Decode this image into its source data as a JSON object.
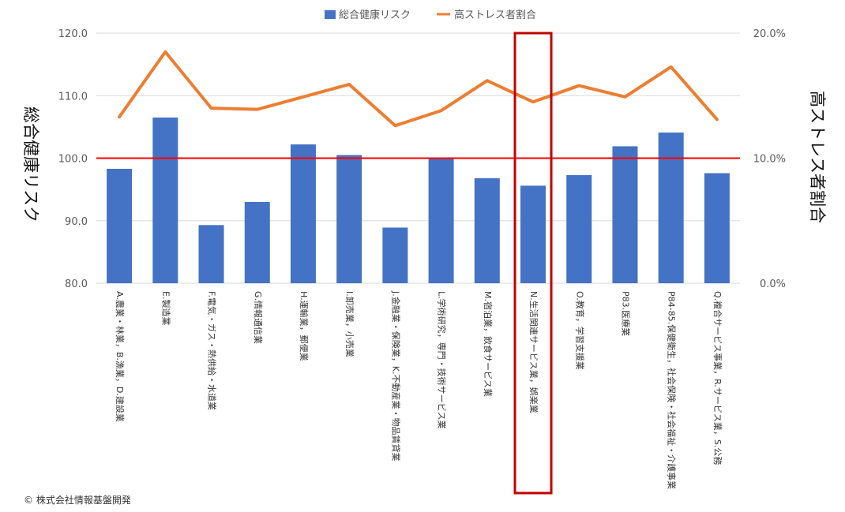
{
  "chart_data": {
    "type": "bar+line",
    "categories": [
      "A.農業・林業，B.漁業，D.建設業",
      "E.製造業",
      "F.電気・ガス・熱供給・水道業",
      "G.情報通信業",
      "H.運輸業，郵便業",
      "I.卸売業，小売業",
      "J.金融業・保険業，K.不動産業・物品賃貸業",
      "L.学術研究，専門・技術サービス業",
      "M.宿泊業，飲食サービス業",
      "N.生活関連サービス業，娯楽業",
      "O.教育，学習支援業",
      "P83.医療業",
      "P84-85.保健衛生，社会保険・社会福祉・介護事業",
      "Q.複合サービス事業，R.サービス業，S.公務"
    ],
    "series": [
      {
        "name": "総合健康リスク",
        "type": "bar",
        "axis": "left",
        "color": "#4472C4",
        "values": [
          98.3,
          106.5,
          89.3,
          93.0,
          102.2,
          100.5,
          88.9,
          99.9,
          96.8,
          95.6,
          97.3,
          101.9,
          104.1,
          97.6
        ]
      },
      {
        "name": "高ストレス者割合",
        "type": "line",
        "axis": "right",
        "color": "#ED7D31",
        "values": [
          13.3,
          18.5,
          14.0,
          13.9,
          14.9,
          15.9,
          12.6,
          13.8,
          16.2,
          14.5,
          15.8,
          14.9,
          17.3,
          13.1
        ]
      }
    ],
    "y_left": {
      "label": "総合健康リスク",
      "min": 80,
      "max": 120,
      "ticks": [
        "80.0",
        "90.0",
        "100.0",
        "110.0",
        "120.0"
      ]
    },
    "y_right": {
      "label": "高ストレス者割合",
      "min": 0,
      "max": 20,
      "ticks": [
        "0.0%",
        "10.0%",
        "20.0%"
      ]
    },
    "reference_line": {
      "value": 100,
      "axis": "left",
      "color": "#FF0000"
    },
    "highlight_category_index": 9,
    "highlight_color": "#C00000",
    "gridlines": true,
    "legend_position": "top"
  },
  "copyright": "© 株式会社情報基盤開発"
}
